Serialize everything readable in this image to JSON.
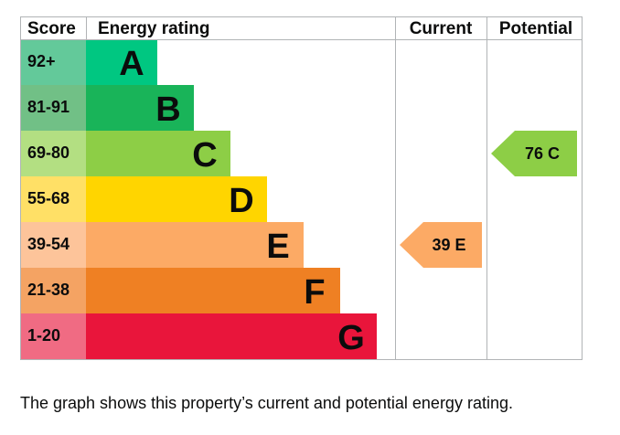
{
  "chart_data": {
    "type": "bar",
    "headers": {
      "score": "Score",
      "rating": "Energy rating",
      "current": "Current",
      "potential": "Potential"
    },
    "bands": [
      {
        "letter": "A",
        "range": "92+",
        "color": "#00c781",
        "score_color": "#63c99a",
        "letter_color": "#0b0c0c"
      },
      {
        "letter": "B",
        "range": "81-91",
        "color": "#19b459",
        "score_color": "#71c086",
        "letter_color": "#0b0c0c"
      },
      {
        "letter": "C",
        "range": "69-80",
        "color": "#8dce46",
        "score_color": "#b3df82",
        "letter_color": "#0b0c0c"
      },
      {
        "letter": "D",
        "range": "55-68",
        "color": "#ffd500",
        "score_color": "#ffe066",
        "letter_color": "#0b0c0c"
      },
      {
        "letter": "E",
        "range": "39-54",
        "color": "#fcaa65",
        "score_color": "#fdc49a",
        "letter_color": "#0b0c0c"
      },
      {
        "letter": "F",
        "range": "21-38",
        "color": "#ef8023",
        "score_color": "#f4a363",
        "letter_color": "#0b0c0c"
      },
      {
        "letter": "G",
        "range": "1-20",
        "color": "#e9153b",
        "score_color": "#f06b83",
        "letter_color": "#0b0c0c"
      }
    ],
    "current": {
      "value": 39,
      "band": "E",
      "label": "39 E",
      "color": "#fcaa65"
    },
    "potential": {
      "value": 76,
      "band": "C",
      "label": "76 C",
      "color": "#8dce46"
    }
  },
  "caption": "The graph shows this property’s current and potential energy rating."
}
